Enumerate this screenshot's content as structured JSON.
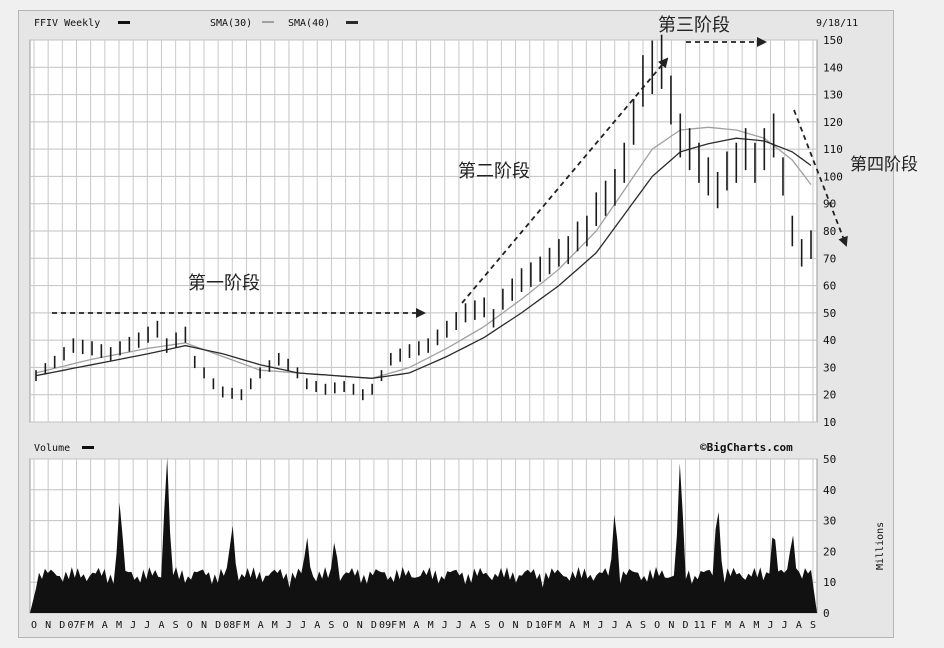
{
  "header": {
    "symbol_label": "FFIV Weekly",
    "sma1_label": "SMA(30)",
    "sma2_label": "SMA(40)",
    "date": "9/18/11"
  },
  "volume_header": {
    "label": "Volume",
    "credit": "©BigCharts.com"
  },
  "annotations": {
    "stage1": "第一阶段",
    "stage2": "第二阶段",
    "stage3": "第三阶段",
    "stage4": "第四阶段"
  },
  "colors": {
    "plot_bg": "#ffffff",
    "grid": "#b8b8b8",
    "bars": "#1a1a1a",
    "volume": "#111111",
    "sma30": "#a0a0a0",
    "sma40": "#2a2a2a",
    "arrow": "#222222"
  },
  "chart_data": [
    {
      "type": "line",
      "title": "FFIV Weekly",
      "ylim": [
        10,
        150
      ],
      "yticks": [
        10,
        20,
        30,
        40,
        50,
        60,
        70,
        80,
        90,
        100,
        110,
        120,
        130,
        140,
        150
      ],
      "x_tick_labels": [
        "O",
        "N",
        "D",
        "07F",
        "M",
        "A",
        "M",
        "J",
        "J",
        "A",
        "S",
        "O",
        "N",
        "D",
        "08F",
        "M",
        "A",
        "M",
        "J",
        "J",
        "A",
        "S",
        "O",
        "N",
        "D",
        "09F",
        "M",
        "A",
        "M",
        "J",
        "J",
        "A",
        "S",
        "O",
        "N",
        "D",
        "10F",
        "M",
        "A",
        "M",
        "J",
        "J",
        "A",
        "S",
        "O",
        "N",
        "D",
        "11",
        "F",
        "M",
        "A",
        "M",
        "J",
        "J",
        "A",
        "S"
      ],
      "price_anchors": [
        [
          0,
          27
        ],
        [
          2,
          32
        ],
        [
          4,
          38
        ],
        [
          6,
          37
        ],
        [
          8,
          35
        ],
        [
          9,
          37
        ],
        [
          11,
          40
        ],
        [
          13,
          44
        ],
        [
          14,
          38
        ],
        [
          15,
          40
        ],
        [
          16,
          42
        ],
        [
          17,
          32
        ],
        [
          19,
          24
        ],
        [
          20,
          21
        ],
        [
          22,
          20
        ],
        [
          23,
          24
        ],
        [
          24,
          28
        ],
        [
          26,
          33
        ],
        [
          27,
          31
        ],
        [
          28,
          28
        ],
        [
          29,
          24
        ],
        [
          31,
          22
        ],
        [
          33,
          23
        ],
        [
          34,
          22
        ],
        [
          35,
          20
        ],
        [
          36,
          22
        ],
        [
          37,
          27
        ],
        [
          38,
          33
        ],
        [
          40,
          36
        ],
        [
          42,
          38
        ],
        [
          44,
          44
        ],
        [
          46,
          50
        ],
        [
          48,
          52
        ],
        [
          49,
          48
        ],
        [
          50,
          55
        ],
        [
          52,
          62
        ],
        [
          54,
          66
        ],
        [
          56,
          72
        ],
        [
          57,
          73
        ],
        [
          58,
          78
        ],
        [
          59,
          80
        ],
        [
          60,
          88
        ],
        [
          62,
          96
        ],
        [
          63,
          105
        ],
        [
          64,
          120
        ],
        [
          65,
          135
        ],
        [
          66,
          140
        ],
        [
          67,
          142
        ],
        [
          68,
          128
        ],
        [
          69,
          115
        ],
        [
          70,
          110
        ],
        [
          71,
          105
        ],
        [
          72,
          100
        ],
        [
          73,
          95
        ],
        [
          74,
          102
        ],
        [
          75,
          105
        ],
        [
          76,
          110
        ],
        [
          77,
          105
        ],
        [
          78,
          110
        ],
        [
          79,
          115
        ],
        [
          80,
          100
        ],
        [
          81,
          80
        ],
        [
          82,
          72
        ],
        [
          83,
          75
        ]
      ],
      "series": [
        {
          "name": "SMA(30)",
          "points": [
            [
              0,
              28
            ],
            [
              6,
              33
            ],
            [
              12,
              37
            ],
            [
              16,
              39
            ],
            [
              20,
              34
            ],
            [
              24,
              29
            ],
            [
              28,
              28
            ],
            [
              32,
              27
            ],
            [
              36,
              26
            ],
            [
              40,
              30
            ],
            [
              44,
              37
            ],
            [
              48,
              45
            ],
            [
              52,
              55
            ],
            [
              56,
              66
            ],
            [
              60,
              80
            ],
            [
              63,
              95
            ],
            [
              66,
              110
            ],
            [
              69,
              117
            ],
            [
              72,
              118
            ],
            [
              75,
              117
            ],
            [
              78,
              114
            ],
            [
              81,
              106
            ],
            [
              83,
              97
            ]
          ]
        },
        {
          "name": "SMA(40)",
          "points": [
            [
              0,
              27
            ],
            [
              6,
              31
            ],
            [
              12,
              35
            ],
            [
              16,
              38
            ],
            [
              20,
              35
            ],
            [
              24,
              31
            ],
            [
              28,
              28
            ],
            [
              32,
              27
            ],
            [
              36,
              26
            ],
            [
              40,
              28
            ],
            [
              44,
              34
            ],
            [
              48,
              41
            ],
            [
              52,
              50
            ],
            [
              56,
              60
            ],
            [
              60,
              72
            ],
            [
              63,
              86
            ],
            [
              66,
              100
            ],
            [
              69,
              109
            ],
            [
              72,
              112
            ],
            [
              75,
              114
            ],
            [
              78,
              113
            ],
            [
              81,
              109
            ],
            [
              83,
              104
            ]
          ]
        }
      ]
    },
    {
      "type": "bar",
      "title": "Volume",
      "ylabel": "Millions",
      "ylim": [
        0,
        50
      ],
      "yticks": [
        0,
        10,
        20,
        30,
        40,
        50
      ],
      "peaks": [
        [
          9,
          31
        ],
        [
          14,
          46
        ],
        [
          21,
          23
        ],
        [
          29,
          18
        ],
        [
          32,
          17
        ],
        [
          62,
          27
        ],
        [
          69,
          44
        ],
        [
          73,
          30
        ],
        [
          79,
          22
        ],
        [
          81,
          20
        ]
      ]
    }
  ]
}
